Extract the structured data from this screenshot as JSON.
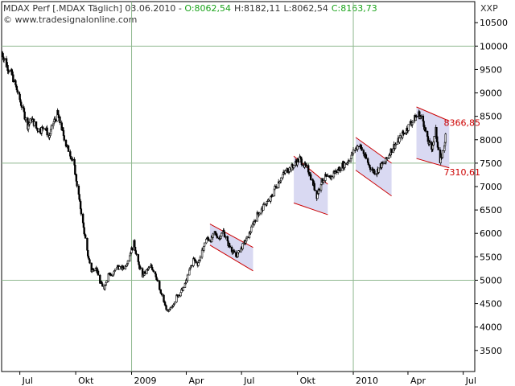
{
  "header": {
    "title": "MDAX Perf [.MDAX Täglich] 03.06.2010",
    "sep": " - ",
    "o": "O:8062,54",
    "h": "H:8182,11",
    "l": "L:8062,54",
    "c": "C:8163,73",
    "watermark": "© www.tradesignalonline.com",
    "axis_unit": "XXP"
  },
  "colors": {
    "background": "#ffffff",
    "grid": "#8fb88f",
    "candle_up": "#ffffff",
    "candle_down": "#000000",
    "channel_fill": "#d9d9f2",
    "channel_line": "#cc0000",
    "label_text": "#cc0000",
    "header_green": "#1aa31a"
  },
  "chart_data": {
    "type": "candlestick",
    "ylim": [
      3050,
      10950
    ],
    "y_ticks": [
      3500,
      4000,
      4500,
      5000,
      5500,
      6000,
      6500,
      7000,
      7500,
      8000,
      8500,
      9000,
      9500,
      10000,
      10500
    ],
    "y_tick_labels": [
      "3500",
      "4000",
      "4500",
      "5000",
      "5500",
      "6000",
      "6500",
      "7000",
      "7500",
      "8000",
      "8500",
      "9000",
      "9500",
      "10000",
      "10500"
    ],
    "x_tick_labels": [
      "Jul",
      "Okt",
      "2009",
      "Apr",
      "Jul",
      "Okt",
      "2010",
      "Apr",
      "Jul"
    ],
    "x_tick_dates": [
      "2008-07-01",
      "2008-10-01",
      "2009-01-01",
      "2009-04-01",
      "2009-07-01",
      "2009-10-01",
      "2010-01-01",
      "2010-04-01",
      "2010-07-01"
    ],
    "xlim": [
      "2008-06-01",
      "2010-07-20"
    ],
    "grid_h": [
      5000,
      7500,
      10000
    ],
    "grid_v": [
      "2009-01-01",
      "2010-01-01"
    ],
    "close_path": [
      [
        "2008-06-02",
        9850
      ],
      [
        "2008-06-09",
        9600
      ],
      [
        "2008-06-16",
        9450
      ],
      [
        "2008-06-23",
        9200
      ],
      [
        "2008-06-30",
        8900
      ],
      [
        "2008-07-07",
        8600
      ],
      [
        "2008-07-14",
        8300
      ],
      [
        "2008-07-21",
        8450
      ],
      [
        "2008-07-28",
        8250
      ],
      [
        "2008-08-04",
        8200
      ],
      [
        "2008-08-11",
        8300
      ],
      [
        "2008-08-18",
        8050
      ],
      [
        "2008-08-25",
        8350
      ],
      [
        "2008-09-01",
        8550
      ],
      [
        "2008-09-08",
        8250
      ],
      [
        "2008-09-15",
        7900
      ],
      [
        "2008-09-22",
        7700
      ],
      [
        "2008-09-29",
        7400
      ],
      [
        "2008-10-06",
        6800
      ],
      [
        "2008-10-13",
        6200
      ],
      [
        "2008-10-20",
        5600
      ],
      [
        "2008-10-27",
        5200
      ],
      [
        "2008-11-03",
        5300
      ],
      [
        "2008-11-10",
        4950
      ],
      [
        "2008-11-17",
        4850
      ],
      [
        "2008-11-24",
        5150
      ],
      [
        "2008-12-01",
        5100
      ],
      [
        "2008-12-08",
        5300
      ],
      [
        "2008-12-15",
        5250
      ],
      [
        "2008-12-22",
        5300
      ],
      [
        "2009-01-05",
        5800
      ],
      [
        "2009-01-12",
        5350
      ],
      [
        "2009-01-19",
        5100
      ],
      [
        "2009-01-26",
        5200
      ],
      [
        "2009-02-02",
        5300
      ],
      [
        "2009-02-09",
        5150
      ],
      [
        "2009-02-16",
        4800
      ],
      [
        "2009-02-23",
        4550
      ],
      [
        "2009-03-02",
        4300
      ],
      [
        "2009-03-09",
        4450
      ],
      [
        "2009-03-16",
        4650
      ],
      [
        "2009-03-23",
        4750
      ],
      [
        "2009-03-30",
        4900
      ],
      [
        "2009-04-06",
        5200
      ],
      [
        "2009-04-13",
        5450
      ],
      [
        "2009-04-20",
        5350
      ],
      [
        "2009-04-27",
        5600
      ],
      [
        "2009-05-04",
        5900
      ],
      [
        "2009-05-11",
        5850
      ],
      [
        "2009-05-18",
        6000
      ],
      [
        "2009-05-25",
        5900
      ],
      [
        "2009-06-01",
        6050
      ],
      [
        "2009-06-08",
        5800
      ],
      [
        "2009-06-15",
        5650
      ],
      [
        "2009-06-22",
        5500
      ],
      [
        "2009-06-29",
        5650
      ],
      [
        "2009-07-06",
        5800
      ],
      [
        "2009-07-13",
        5950
      ],
      [
        "2009-07-20",
        6200
      ],
      [
        "2009-07-27",
        6400
      ],
      [
        "2009-08-03",
        6500
      ],
      [
        "2009-08-10",
        6650
      ],
      [
        "2009-08-17",
        6700
      ],
      [
        "2009-08-24",
        6950
      ],
      [
        "2009-08-31",
        7100
      ],
      [
        "2009-09-07",
        7250
      ],
      [
        "2009-09-14",
        7350
      ],
      [
        "2009-09-21",
        7400
      ],
      [
        "2009-09-28",
        7500
      ],
      [
        "2009-10-05",
        7600
      ],
      [
        "2009-10-12",
        7450
      ],
      [
        "2009-10-19",
        7350
      ],
      [
        "2009-10-26",
        7100
      ],
      [
        "2009-11-02",
        6800
      ],
      [
        "2009-11-09",
        7100
      ],
      [
        "2009-11-16",
        7200
      ],
      [
        "2009-11-23",
        7150
      ],
      [
        "2009-11-30",
        7300
      ],
      [
        "2009-12-07",
        7350
      ],
      [
        "2009-12-14",
        7450
      ],
      [
        "2009-12-21",
        7500
      ],
      [
        "2009-12-28",
        7650
      ],
      [
        "2010-01-04",
        7800
      ],
      [
        "2010-01-11",
        7900
      ],
      [
        "2010-01-18",
        7700
      ],
      [
        "2010-01-25",
        7500
      ],
      [
        "2010-02-01",
        7350
      ],
      [
        "2010-02-08",
        7300
      ],
      [
        "2010-02-15",
        7450
      ],
      [
        "2010-02-22",
        7500
      ],
      [
        "2010-03-01",
        7700
      ],
      [
        "2010-03-08",
        7850
      ],
      [
        "2010-03-15",
        7950
      ],
      [
        "2010-03-22",
        8100
      ],
      [
        "2010-03-29",
        8200
      ],
      [
        "2010-04-05",
        8350
      ],
      [
        "2010-04-12",
        8450
      ],
      [
        "2010-04-19",
        8550
      ],
      [
        "2010-04-26",
        8400
      ],
      [
        "2010-05-03",
        8000
      ],
      [
        "2010-05-10",
        7800
      ],
      [
        "2010-05-17",
        8200
      ],
      [
        "2010-05-24",
        7500
      ],
      [
        "2010-05-31",
        7900
      ],
      [
        "2010-06-03",
        8160
      ]
    ],
    "channels": [
      {
        "start": "2009-05-10",
        "end": "2009-07-20",
        "upper": [
          6200,
          5700
        ],
        "lower": [
          5750,
          5200
        ]
      },
      {
        "start": "2009-09-25",
        "end": "2009-11-20",
        "upper": [
          7650,
          7050
        ],
        "lower": [
          6650,
          6400
        ]
      },
      {
        "start": "2010-01-05",
        "end": "2010-03-05",
        "upper": [
          8050,
          7500
        ],
        "lower": [
          7350,
          6800
        ]
      },
      {
        "start": "2010-04-15",
        "end": "2010-06-08",
        "upper": [
          8700,
          8400
        ],
        "lower": [
          7600,
          7400
        ]
      }
    ],
    "annotations": [
      {
        "text": "8366,85",
        "date": "2010-06-07",
        "value": 8366.85
      },
      {
        "text": "7310,61",
        "date": "2010-06-07",
        "value": 7310.61
      }
    ]
  }
}
